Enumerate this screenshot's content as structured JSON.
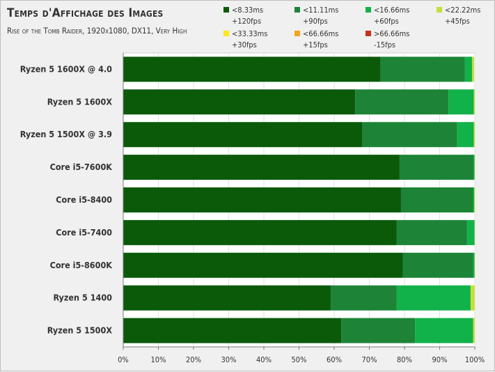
{
  "chart_data": {
    "type": "bar",
    "stacked": true,
    "orientation": "horizontal",
    "title": "Temps d'Affichage des Images",
    "subtitle": "Rise of the Tomb Raider, 1920x1080, DX11, Very High",
    "xlabel": "",
    "ylabel": "",
    "xlim": [
      0,
      100
    ],
    "x_ticks": [
      "0%",
      "10%",
      "20%",
      "30%",
      "40%",
      "50%",
      "60%",
      "70%",
      "80%",
      "90%",
      "100%"
    ],
    "categories": [
      "Ryzen 5 1600X @ 4.0",
      "Ryzen 5 1600X",
      "Ryzen 5 1500X @ 3.9",
      "Core i5-7600K",
      "Core i5-8400",
      "Core i5-7400",
      "Core i5-8600K",
      "Ryzen 5 1400",
      "Ryzen 5 1500X"
    ],
    "series": [
      {
        "name": "<8.33ms",
        "sub": "+120fps",
        "color": "#0a5a0a",
        "values": [
          73.2,
          66.0,
          68.0,
          78.6,
          79.0,
          77.8,
          79.5,
          59.0,
          62.0
        ]
      },
      {
        "name": "<11.11ms",
        "sub": "+90fps",
        "color": "#1d8437",
        "values": [
          24.0,
          26.5,
          27.0,
          21.0,
          20.5,
          20.0,
          20.0,
          18.8,
          21.0
        ]
      },
      {
        "name": "<16.66ms",
        "sub": "+60fps",
        "color": "#12b24a",
        "values": [
          2.0,
          7.2,
          4.7,
          0.3,
          0.3,
          2.1,
          0.4,
          21.0,
          16.5
        ]
      },
      {
        "name": "<22.22ms",
        "sub": "+45fps",
        "color": "#c2e03a",
        "values": [
          0.6,
          0.3,
          0.3,
          0.1,
          0.2,
          0.1,
          0.1,
          1.1,
          0.5
        ]
      },
      {
        "name": "<33.33ms",
        "sub": "+30fps",
        "color": "#ffe81a",
        "values": [
          0.0,
          0.0,
          0.0,
          0.0,
          0.0,
          0.0,
          0.0,
          0.1,
          0.0
        ]
      },
      {
        "name": "<66.66ms",
        "sub": "+15fps",
        "color": "#f5a41d",
        "values": [
          0,
          0,
          0,
          0,
          0,
          0,
          0,
          0,
          0
        ]
      },
      {
        "name": ">66.66ms",
        "sub": "-15fps",
        "color": "#c4321a",
        "values": [
          0,
          0,
          0,
          0,
          0,
          0,
          0,
          0,
          0
        ]
      }
    ],
    "grid": true,
    "legend_position": "top-right"
  }
}
